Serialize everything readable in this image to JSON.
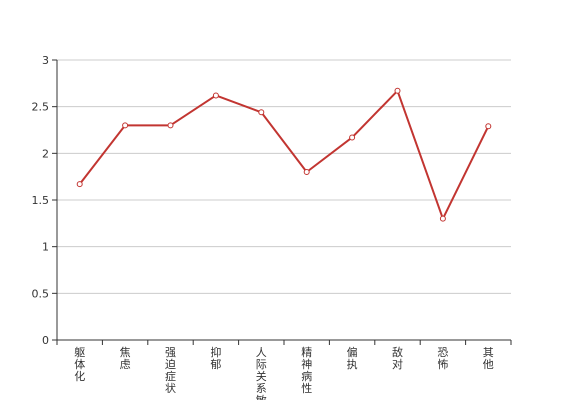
{
  "chart_data": {
    "type": "line",
    "title": "",
    "xlabel": "",
    "ylabel": "",
    "categories": [
      "躯体化",
      "焦虑",
      "强迫症状",
      "抑郁",
      "人际关系敏感",
      "精神病性",
      "偏执",
      "敌对",
      "恐怖",
      "其他"
    ],
    "series": [
      {
        "values": [
          1.67,
          2.3,
          2.3,
          2.62,
          2.44,
          1.8,
          2.17,
          2.67,
          1.3,
          2.29
        ]
      }
    ],
    "ylim": [
      0,
      3
    ],
    "yticks": [
      0,
      0.5,
      1,
      1.5,
      2,
      2.5,
      3
    ],
    "ytick_labels": [
      "0",
      "0.5",
      "1",
      "1.5",
      "2",
      "2.5",
      "3"
    ],
    "grid": true,
    "colors": {
      "line": "#c23531",
      "grid": "#cccccc",
      "axis": "#333333",
      "marker_fill": "#ffffff"
    }
  }
}
